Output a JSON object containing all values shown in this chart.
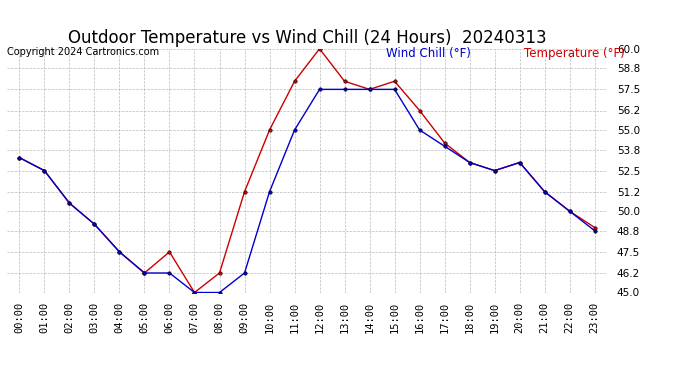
{
  "title": "Outdoor Temperature vs Wind Chill (24 Hours)  20240313",
  "copyright": "Copyright 2024 Cartronics.com",
  "legend_wind_chill": "Wind Chill (°F)",
  "legend_temperature": "Temperature (°F)",
  "x_labels": [
    "00:00",
    "01:00",
    "02:00",
    "03:00",
    "04:00",
    "05:00",
    "06:00",
    "07:00",
    "08:00",
    "09:00",
    "10:00",
    "11:00",
    "12:00",
    "13:00",
    "14:00",
    "15:00",
    "16:00",
    "17:00",
    "18:00",
    "19:00",
    "20:00",
    "21:00",
    "22:00",
    "23:00"
  ],
  "temperature": [
    53.3,
    52.5,
    50.5,
    49.2,
    47.5,
    46.2,
    47.5,
    45.0,
    46.2,
    51.2,
    55.0,
    58.0,
    60.0,
    58.0,
    57.5,
    58.0,
    56.2,
    54.2,
    53.0,
    52.5,
    53.0,
    51.2,
    50.0,
    49.0
  ],
  "wind_chill": [
    53.3,
    52.5,
    50.5,
    49.2,
    47.5,
    46.2,
    46.2,
    45.0,
    45.0,
    46.2,
    51.2,
    55.0,
    57.5,
    57.5,
    57.5,
    57.5,
    55.0,
    54.0,
    53.0,
    52.5,
    53.0,
    51.2,
    50.0,
    48.8
  ],
  "ylim": [
    45.0,
    60.0
  ],
  "yticks": [
    45.0,
    46.2,
    47.5,
    48.8,
    50.0,
    51.2,
    52.5,
    53.8,
    55.0,
    56.2,
    57.5,
    58.8,
    60.0
  ],
  "temp_color": "#cc0000",
  "wind_chill_color": "#0000cc",
  "background_color": "#ffffff",
  "grid_color": "#aaaaaa",
  "title_fontsize": 12,
  "axis_fontsize": 7.5,
  "legend_fontsize": 8.5,
  "copyright_fontsize": 7
}
